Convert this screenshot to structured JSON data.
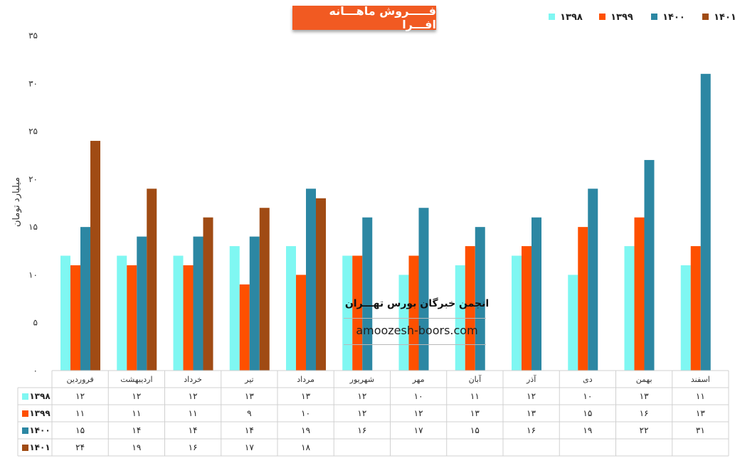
{
  "chart_data": {
    "type": "bar",
    "title": "فـــــروش ماهـــانه افـــرا",
    "ylabel": "میلیارد تومان",
    "ylim": [
      0,
      35
    ],
    "yticks": [
      0,
      5,
      10,
      15,
      20,
      25,
      30,
      35
    ],
    "ytick_labels": [
      "۰",
      "۵",
      "۱۰",
      "۱۵",
      "۲۰",
      "۲۵",
      "۳۰",
      "۳۵"
    ],
    "categories": [
      "فروردین",
      "اردیبهشت",
      "خرداد",
      "تیر",
      "مرداد",
      "شهریور",
      "مهر",
      "آبان",
      "آذر",
      "دی",
      "بهمن",
      "اسفند"
    ],
    "series": [
      {
        "name": "۱۳۹۸",
        "color": "#7ff7f2",
        "values": [
          12,
          12,
          12,
          13,
          13,
          12,
          10,
          11,
          12,
          10,
          13,
          11
        ],
        "labels": [
          "۱۲",
          "۱۲",
          "۱۲",
          "۱۳",
          "۱۳",
          "۱۲",
          "۱۰",
          "۱۱",
          "۱۲",
          "۱۰",
          "۱۳",
          "۱۱"
        ]
      },
      {
        "name": "۱۳۹۹",
        "color": "#fe5000",
        "values": [
          11,
          11,
          11,
          9,
          10,
          12,
          12,
          13,
          13,
          15,
          16,
          13
        ],
        "labels": [
          "۱۱",
          "۱۱",
          "۱۱",
          "۹",
          "۱۰",
          "۱۲",
          "۱۲",
          "۱۳",
          "۱۳",
          "۱۵",
          "۱۶",
          "۱۳"
        ]
      },
      {
        "name": "۱۴۰۰",
        "color": "#2c87a3",
        "values": [
          15,
          14,
          14,
          14,
          19,
          16,
          17,
          15,
          16,
          19,
          22,
          31
        ],
        "labels": [
          "۱۵",
          "۱۴",
          "۱۴",
          "۱۴",
          "۱۹",
          "۱۶",
          "۱۷",
          "۱۵",
          "۱۶",
          "۱۹",
          "۲۲",
          "۳۱"
        ]
      },
      {
        "name": "۱۴۰۱",
        "color": "#a04b14",
        "values": [
          24,
          19,
          16,
          17,
          18,
          null,
          null,
          null,
          null,
          null,
          null,
          null
        ],
        "labels": [
          "۲۴",
          "۱۹",
          "۱۶",
          "۱۷",
          "۱۸",
          "",
          "",
          "",
          "",
          "",
          "",
          ""
        ]
      }
    ],
    "legend": "top-right",
    "grid": false,
    "data_table": true
  },
  "watermark": {
    "line1": "انجمن خبرگان بورس تهـــران",
    "line2": "amoozesh-boors.com"
  }
}
